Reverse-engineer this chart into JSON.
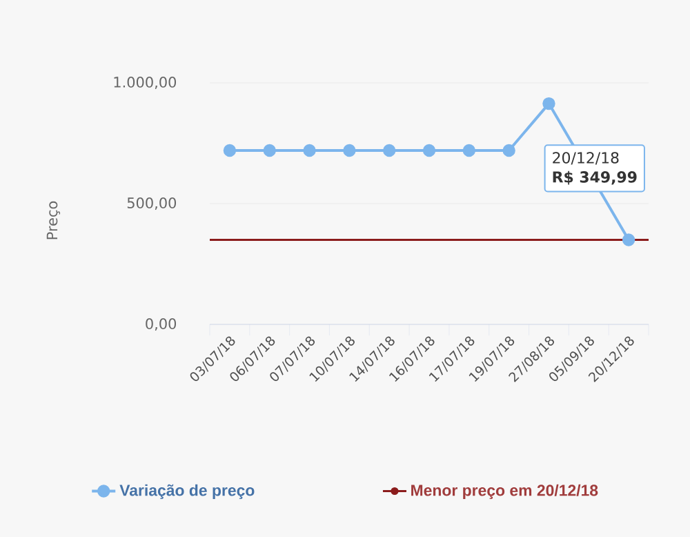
{
  "chart_data": {
    "type": "line",
    "ylabel": "Preço",
    "categories": [
      "03/07/18",
      "06/07/18",
      "07/07/18",
      "10/07/18",
      "14/07/18",
      "16/07/18",
      "17/07/18",
      "19/07/18",
      "27/08/18",
      "05/09/18",
      "20/12/18"
    ],
    "series": [
      {
        "name": "Variação de preço",
        "color": "#7cb5ec",
        "values": [
          720,
          720,
          720,
          720,
          720,
          720,
          720,
          720,
          914,
          null,
          349.99
        ]
      }
    ],
    "marker": "circle",
    "ref_lines": [
      {
        "axis": "y",
        "value": 349.99,
        "label": "Menor preço em 20/12/18",
        "color": "#8b1c1c"
      }
    ],
    "ylim": [
      0,
      1000
    ],
    "yticks": [
      {
        "value": 0,
        "label": "0,00"
      },
      {
        "value": 500,
        "label": "500,00"
      },
      {
        "value": 1000,
        "label": "1.000,00"
      }
    ],
    "grid": "y",
    "legend": "bottom",
    "annotations": [
      "20/12/18",
      "R$ 349,99"
    ]
  }
}
